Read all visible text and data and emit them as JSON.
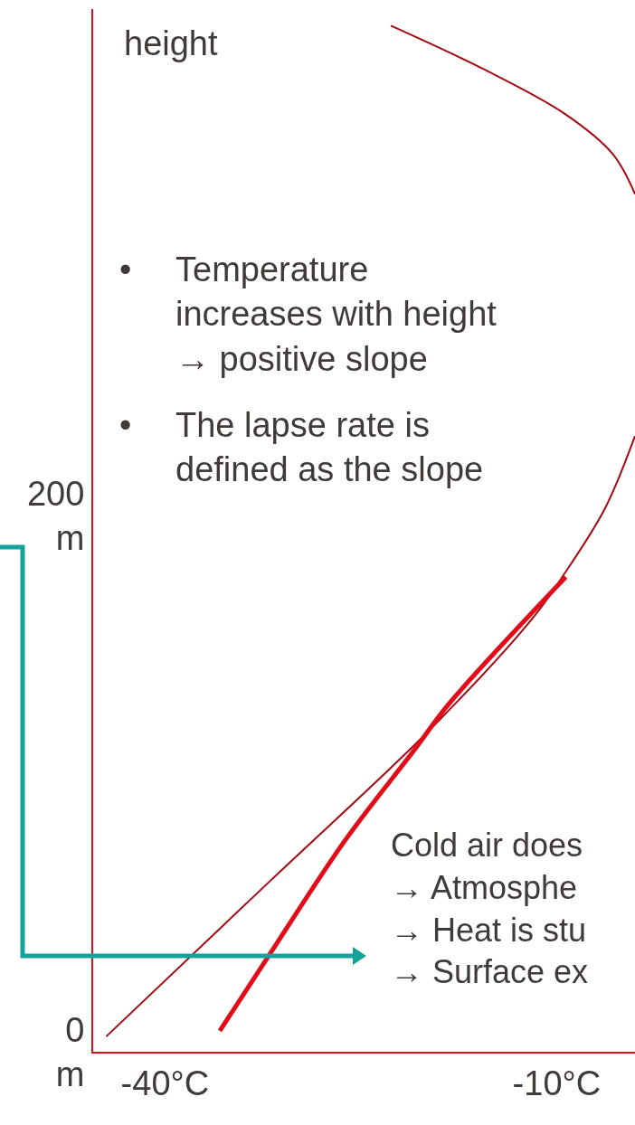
{
  "chart_data": {
    "type": "line",
    "ylabel": "height",
    "xlim": [
      -45.5,
      -4.0
    ],
    "ylim": [
      0,
      389
    ],
    "xticks": [
      {
        "value": -40,
        "label": "-40°C"
      },
      {
        "value": -10,
        "label": "-10°C"
      }
    ],
    "yticks": [
      {
        "value": 0,
        "label": "0 m"
      },
      {
        "value": 200,
        "label": "200 m"
      }
    ],
    "marker": "none",
    "line_style": "solid",
    "series": [
      {
        "color": "#a50a12",
        "x": [
          -44.5,
          -31.8,
          -19.6,
          -11.7,
          -9.4,
          -6.3,
          -4.0
        ],
        "values": [
          5.7,
          64.4,
          120.7,
          162.6,
          178.4,
          202.7,
          229.7
        ]
      },
      {
        "color": "#a50a12",
        "x": [
          -4.0,
          -5.7,
          -9.4,
          -15.6,
          -22.7
        ],
        "values": [
          320,
          334.9,
          350,
          366.6,
          382.8
        ]
      },
      {
        "color": "#e30b17",
        "x": [
          -35.8,
          -32.2,
          -26.2,
          -20.9,
          -18.3,
          -9.3
        ],
        "values": [
          7.8,
          34.7,
          78.9,
          112.6,
          129.5,
          177.1
        ]
      }
    ],
    "annotations": [
      "•\tTemperature\nincreases with height\n→ positive slope",
      "•\tThe lapse rate is\ndefined as the slope",
      "Cold air does\n→ Atmosphe\n→ Heat is stu\n→ Surface ex"
    ]
  }
}
